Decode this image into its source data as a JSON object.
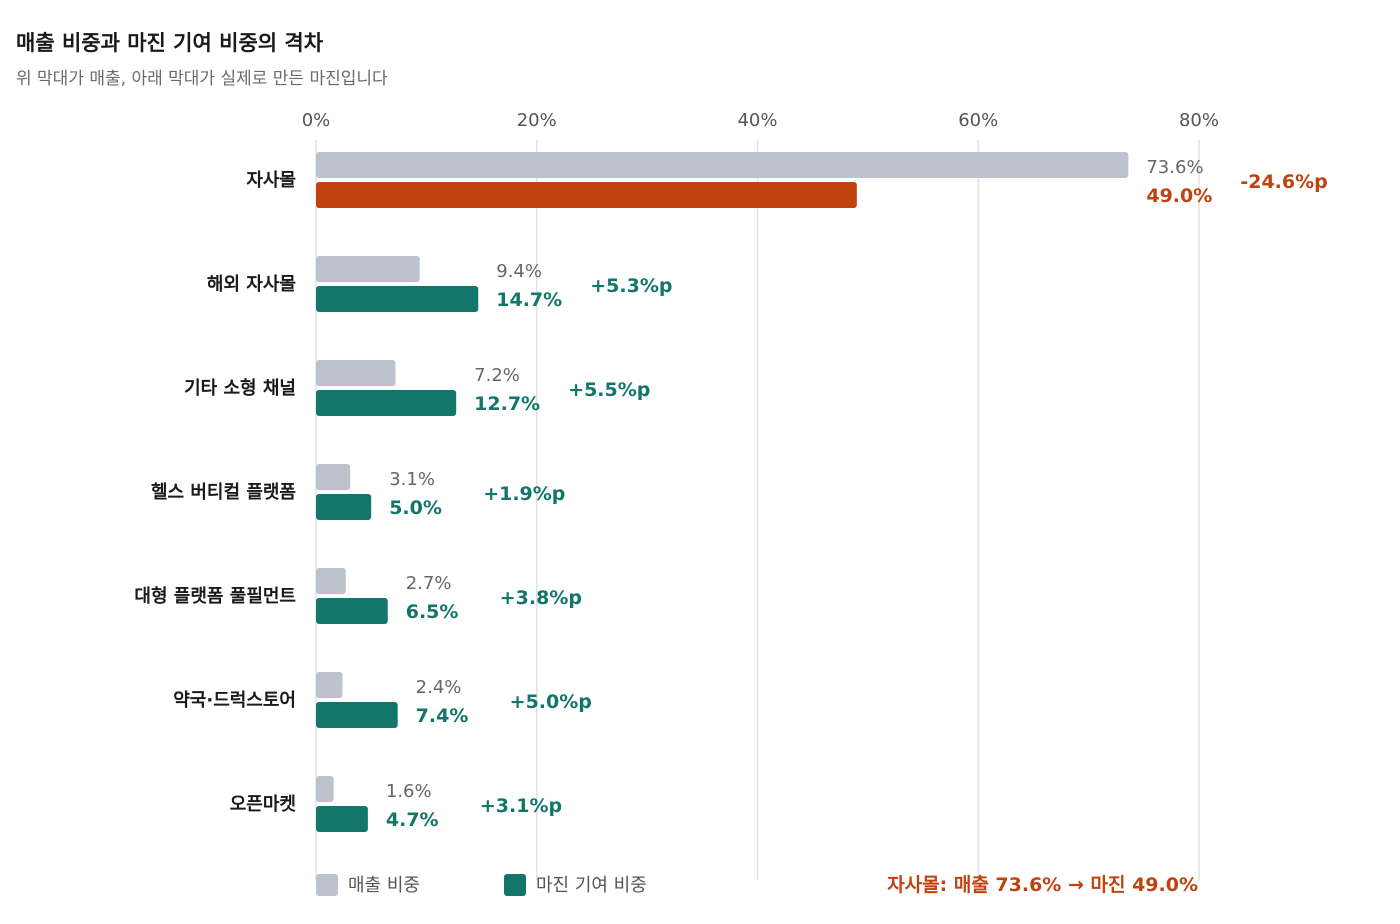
{
  "chart_data": {
    "type": "bar",
    "title": "매출 비중과 마진 기여 비중의 격차",
    "subtitle": "위 막대가 매출, 아래 막대가 실제로 만든 마진입니다",
    "categories": [
      "자사몰",
      "해외 자사몰",
      "기타 소형 채널",
      "헬스 버티컬 플랫폼",
      "대형 플랫폼 풀필먼트",
      "약국·드럭스토어",
      "오픈마켓"
    ],
    "series": [
      {
        "name": "매출 비중",
        "values": [
          73.6,
          9.4,
          7.2,
          3.1,
          2.7,
          2.4,
          1.6
        ]
      },
      {
        "name": "마진 기여 비중",
        "values": [
          49.0,
          14.7,
          12.7,
          5.0,
          6.5,
          7.4,
          4.7
        ]
      }
    ],
    "sales_labels": [
      "73.6%",
      "9.4%",
      "7.2%",
      "3.1%",
      "2.7%",
      "2.4%",
      "1.6%"
    ],
    "margin_labels": [
      "49.0%",
      "14.7%",
      "12.7%",
      "5.0%",
      "6.5%",
      "7.4%",
      "4.7%"
    ],
    "diff_labels": [
      "-24.6%p",
      "+5.3%p",
      "+5.5%p",
      "+1.9%p",
      "+3.8%p",
      "+5.0%p",
      "+3.1%p"
    ],
    "highlight_category": "자사몰",
    "xlim": [
      0,
      80
    ],
    "x_ticks": [
      0,
      20,
      40,
      60,
      80
    ],
    "x_tick_labels": [
      "0%",
      "20%",
      "40%",
      "60%",
      "80%"
    ],
    "grid": true,
    "legend": [
      "매출 비중",
      "마진 기여 비중"
    ],
    "legend_position": "bottom-left",
    "annotation": "자사몰: 매출 73.6% → 마진 49.0%",
    "colors": {
      "sales": "#bcc3cd",
      "margin": "#12766b",
      "highlight": "#c0420f",
      "grid": "#e2e2e2"
    }
  }
}
